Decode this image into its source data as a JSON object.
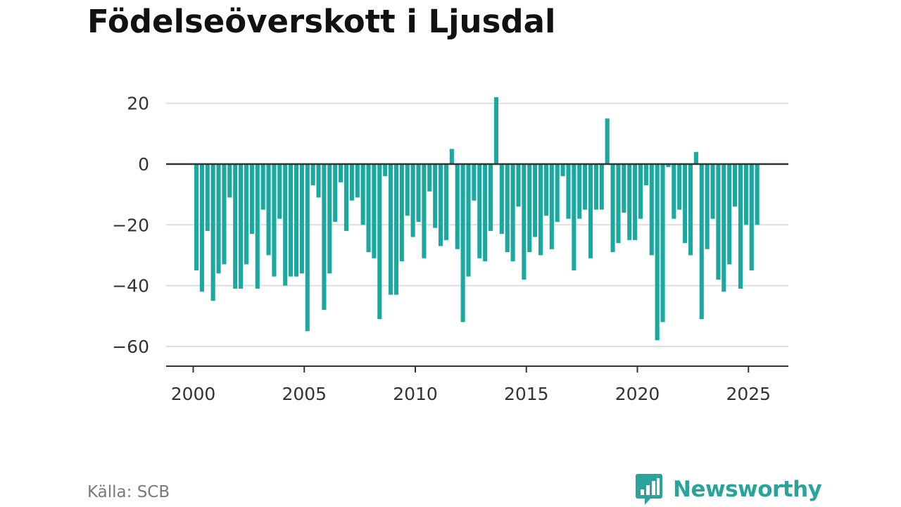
{
  "title": "Födelseöverskott i Ljusdal",
  "source": "Källa: SCB",
  "brand": {
    "name": "Newsworthy",
    "color": "#2aa39c",
    "icon": "newsworthy-speech-bubble-bar-chart-icon"
  },
  "colors": {
    "bar": "#1aa89f",
    "grid": "#dddddd",
    "zero_line": "#333333",
    "axis": "#333333"
  },
  "chart_data": {
    "type": "bar",
    "title": "Födelseöverskott i Ljusdal",
    "xlabel": "",
    "ylabel": "",
    "frequency": "quarterly",
    "grid": true,
    "ylim": [
      -65,
      23
    ],
    "y_ticks": [
      20,
      0,
      -20,
      -40,
      -60
    ],
    "y_tick_labels": [
      "20",
      "0",
      "−20",
      "−40",
      "−60"
    ],
    "x_ticks": [
      "2000",
      "2005",
      "2010",
      "2015",
      "2020",
      "2025"
    ],
    "start": "2000 Q1",
    "series": [
      {
        "values": [
          -35,
          -42,
          -22,
          -45,
          -36,
          -33,
          -11,
          -41,
          -41,
          -33,
          -23,
          -41,
          -15,
          -30,
          -37,
          -18,
          -40,
          -37,
          -37,
          -36,
          -55,
          -7,
          -11,
          -48,
          -36,
          -19,
          -6,
          -22,
          -12,
          -11,
          -20,
          -29,
          -31,
          -51,
          -4,
          -43,
          -43,
          -32,
          -17,
          -24,
          -19,
          -31,
          -9,
          -21,
          -27,
          -25,
          5,
          -28,
          -52,
          -37,
          -12,
          -31,
          -32,
          -22,
          22,
          -23,
          -29,
          -32,
          -14,
          -38,
          -29,
          -24,
          -30,
          -17,
          -28,
          -19,
          -4,
          -18,
          -35,
          -18,
          -15,
          -31,
          -15,
          -15,
          15,
          -29,
          -26,
          -16,
          -25,
          -25,
          -18,
          -7,
          -30,
          -58,
          -52,
          -1,
          -18,
          -15,
          -26,
          -30,
          4,
          -51,
          -28,
          -18,
          -38,
          -42,
          -33,
          -14,
          -41,
          -20,
          -35,
          -20
        ]
      }
    ]
  }
}
